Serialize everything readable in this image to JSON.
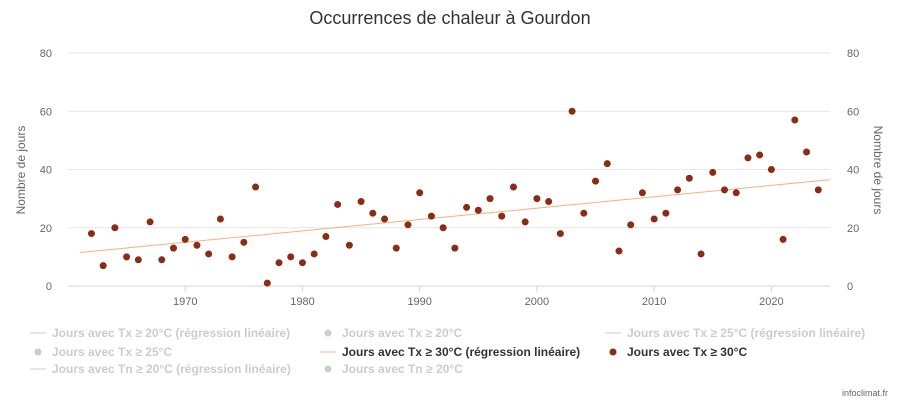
{
  "chart_data": {
    "type": "scatter",
    "title": "Occurrences de chaleur à Gourdon",
    "ylabel": "Nombre de jours",
    "ylabel_right": "Nombre de jours",
    "xlim": [
      1960,
      2025
    ],
    "ylim": [
      0,
      80
    ],
    "x_ticks": [
      1970,
      1980,
      1990,
      2000,
      2010,
      2020
    ],
    "y_ticks": [
      0,
      20,
      40,
      60,
      80
    ],
    "grid": true,
    "legend_position": "bottom",
    "active_series": {
      "name": "Jours avec Tx ≥ 30°C",
      "color": "#8b2c14",
      "points": [
        {
          "x": 1962,
          "y": 18
        },
        {
          "x": 1963,
          "y": 7
        },
        {
          "x": 1964,
          "y": 20
        },
        {
          "x": 1965,
          "y": 10
        },
        {
          "x": 1966,
          "y": 9
        },
        {
          "x": 1967,
          "y": 22
        },
        {
          "x": 1968,
          "y": 9
        },
        {
          "x": 1969,
          "y": 13
        },
        {
          "x": 1970,
          "y": 16
        },
        {
          "x": 1971,
          "y": 14
        },
        {
          "x": 1972,
          "y": 11
        },
        {
          "x": 1973,
          "y": 23
        },
        {
          "x": 1974,
          "y": 10
        },
        {
          "x": 1975,
          "y": 15
        },
        {
          "x": 1976,
          "y": 34
        },
        {
          "x": 1977,
          "y": 1
        },
        {
          "x": 1978,
          "y": 8
        },
        {
          "x": 1979,
          "y": 10
        },
        {
          "x": 1980,
          "y": 8
        },
        {
          "x": 1981,
          "y": 11
        },
        {
          "x": 1982,
          "y": 17
        },
        {
          "x": 1983,
          "y": 28
        },
        {
          "x": 1984,
          "y": 14
        },
        {
          "x": 1985,
          "y": 29
        },
        {
          "x": 1986,
          "y": 25
        },
        {
          "x": 1987,
          "y": 23
        },
        {
          "x": 1988,
          "y": 13
        },
        {
          "x": 1989,
          "y": 21
        },
        {
          "x": 1990,
          "y": 32
        },
        {
          "x": 1991,
          "y": 24
        },
        {
          "x": 1992,
          "y": 20
        },
        {
          "x": 1993,
          "y": 13
        },
        {
          "x": 1994,
          "y": 27
        },
        {
          "x": 1995,
          "y": 26
        },
        {
          "x": 1996,
          "y": 30
        },
        {
          "x": 1997,
          "y": 24
        },
        {
          "x": 1998,
          "y": 34
        },
        {
          "x": 1999,
          "y": 22
        },
        {
          "x": 2000,
          "y": 30
        },
        {
          "x": 2001,
          "y": 29
        },
        {
          "x": 2002,
          "y": 18
        },
        {
          "x": 2003,
          "y": 60
        },
        {
          "x": 2004,
          "y": 25
        },
        {
          "x": 2005,
          "y": 36
        },
        {
          "x": 2006,
          "y": 42
        },
        {
          "x": 2007,
          "y": 12
        },
        {
          "x": 2008,
          "y": 21
        },
        {
          "x": 2009,
          "y": 32
        },
        {
          "x": 2010,
          "y": 23
        },
        {
          "x": 2011,
          "y": 25
        },
        {
          "x": 2012,
          "y": 33
        },
        {
          "x": 2013,
          "y": 37
        },
        {
          "x": 2014,
          "y": 11
        },
        {
          "x": 2015,
          "y": 39
        },
        {
          "x": 2016,
          "y": 33
        },
        {
          "x": 2017,
          "y": 32
        },
        {
          "x": 2018,
          "y": 44
        },
        {
          "x": 2019,
          "y": 45
        },
        {
          "x": 2020,
          "y": 40
        },
        {
          "x": 2021,
          "y": 16
        },
        {
          "x": 2022,
          "y": 57
        },
        {
          "x": 2023,
          "y": 46
        },
        {
          "x": 2024,
          "y": 33
        }
      ]
    },
    "regression": {
      "name": "Jours avec Tx ≥ 30°C (régression linéaire)",
      "color": "#f4b183",
      "start": {
        "x": 1961,
        "y": 11.5
      },
      "end": {
        "x": 2025,
        "y": 36.5
      }
    },
    "legend": [
      {
        "label": "Jours avec Tx ≥ 20°C (régression linéaire)",
        "symbol": "line",
        "active": false
      },
      {
        "label": "Jours avec Tx ≥ 20°C",
        "symbol": "dot",
        "active": false
      },
      {
        "label": "Jours avec Tx ≥ 25°C (régression linéaire)",
        "symbol": "line",
        "active": false
      },
      {
        "label": "Jours avec Tx ≥ 25°C",
        "symbol": "dot",
        "active": false
      },
      {
        "label": "Jours avec Tx ≥ 30°C (régression linéaire)",
        "symbol": "line",
        "active": true,
        "color": "#f4b183"
      },
      {
        "label": "Jours avec Tx ≥ 30°C",
        "symbol": "dot",
        "active": true,
        "color": "#8b2c14"
      },
      {
        "label": "Jours avec Tn ≥ 20°C (régression linéaire)",
        "symbol": "line",
        "active": false
      },
      {
        "label": "Jours avec Tn ≥ 20°C",
        "symbol": "dot",
        "active": false
      }
    ],
    "inactive_color": "#cccccc",
    "active_text_color": "#333333",
    "credit": "infoclimat.fr"
  }
}
